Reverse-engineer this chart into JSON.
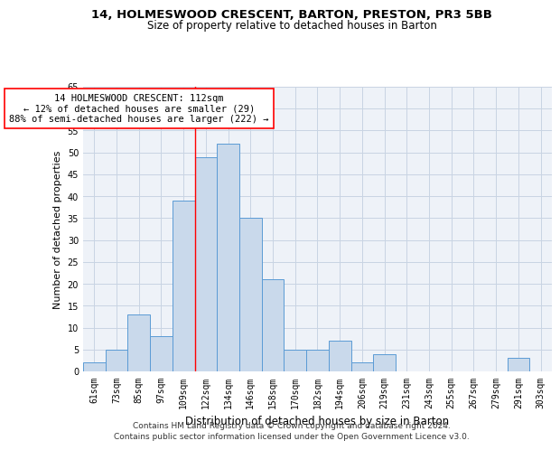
{
  "title_line1": "14, HOLMESWOOD CRESCENT, BARTON, PRESTON, PR3 5BB",
  "title_line2": "Size of property relative to detached houses in Barton",
  "xlabel": "Distribution of detached houses by size in Barton",
  "ylabel": "Number of detached properties",
  "categories": [
    "61sqm",
    "73sqm",
    "85sqm",
    "97sqm",
    "109sqm",
    "122sqm",
    "134sqm",
    "146sqm",
    "158sqm",
    "170sqm",
    "182sqm",
    "194sqm",
    "206sqm",
    "219sqm",
    "231sqm",
    "243sqm",
    "255sqm",
    "267sqm",
    "279sqm",
    "291sqm",
    "303sqm"
  ],
  "values": [
    2,
    5,
    13,
    8,
    39,
    49,
    52,
    35,
    21,
    5,
    5,
    7,
    2,
    4,
    0,
    0,
    0,
    0,
    0,
    3,
    0
  ],
  "bar_color": "#c9d9eb",
  "bar_edge_color": "#5b9bd5",
  "grid_color": "#c8d4e3",
  "background_color": "#eef2f8",
  "vline_x": 4.5,
  "vline_color": "red",
  "annotation_text": "14 HOLMESWOOD CRESCENT: 112sqm\n← 12% of detached houses are smaller (29)\n88% of semi-detached houses are larger (222) →",
  "annotation_box_color": "white",
  "annotation_box_edge_color": "red",
  "ylim": [
    0,
    65
  ],
  "yticks": [
    0,
    5,
    10,
    15,
    20,
    25,
    30,
    35,
    40,
    45,
    50,
    55,
    60,
    65
  ],
  "footnote1": "Contains HM Land Registry data © Crown copyright and database right 2024.",
  "footnote2": "Contains public sector information licensed under the Open Government Licence v3.0.",
  "title1_fontsize": 9.5,
  "title2_fontsize": 8.5,
  "xlabel_fontsize": 8.5,
  "ylabel_fontsize": 8,
  "tick_fontsize": 7,
  "annotation_fontsize": 7.5,
  "footnote_fontsize": 6.5
}
